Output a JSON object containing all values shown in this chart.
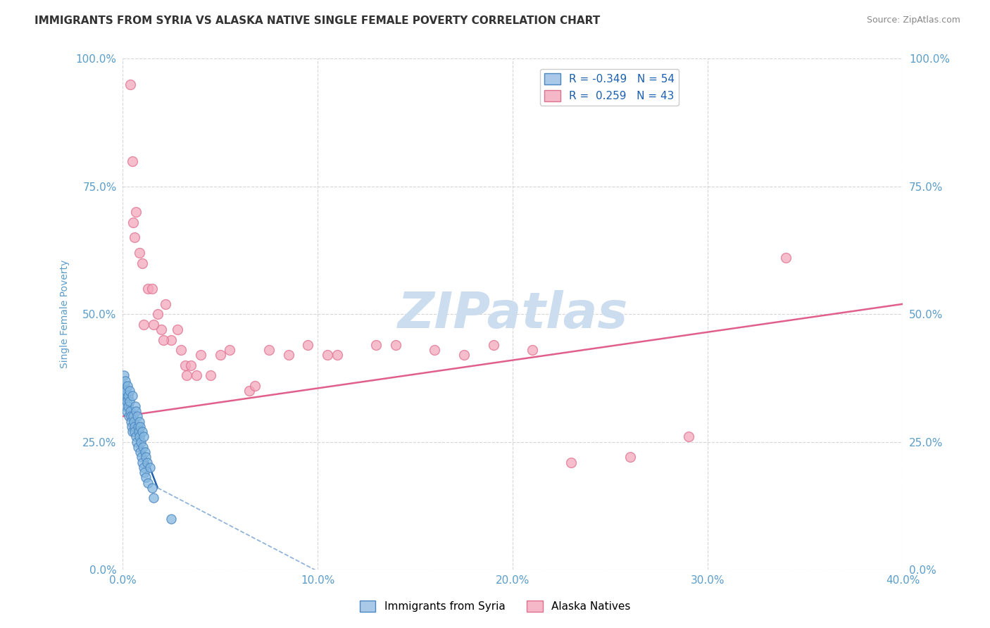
{
  "title": "IMMIGRANTS FROM SYRIA VS ALASKA NATIVE SINGLE FEMALE POVERTY CORRELATION CHART",
  "source": "Source: ZipAtlas.com",
  "ylabel": "Single Female Poverty",
  "x_tick_labels": [
    "0.0%",
    "10.0%",
    "20.0%",
    "30.0%",
    "40.0%"
  ],
  "x_tick_values": [
    0.0,
    10.0,
    20.0,
    30.0,
    40.0
  ],
  "y_tick_labels": [
    "0.0%",
    "25.0%",
    "50.0%",
    "75.0%",
    "100.0%"
  ],
  "y_tick_values": [
    0.0,
    25.0,
    50.0,
    75.0,
    100.0
  ],
  "xlim": [
    0.0,
    40.0
  ],
  "ylim": [
    0.0,
    100.0
  ],
  "watermark": "ZIPatlas",
  "blue_scatter": {
    "color": "#85b8e0",
    "edgecolor": "#4a86c0",
    "x": [
      0.05,
      0.08,
      0.1,
      0.12,
      0.14,
      0.15,
      0.18,
      0.2,
      0.22,
      0.25,
      0.28,
      0.3,
      0.32,
      0.35,
      0.38,
      0.4,
      0.42,
      0.45,
      0.48,
      0.5,
      0.52,
      0.55,
      0.58,
      0.6,
      0.62,
      0.65,
      0.68,
      0.7,
      0.72,
      0.75,
      0.78,
      0.8,
      0.82,
      0.85,
      0.88,
      0.9,
      0.92,
      0.95,
      0.98,
      1.0,
      1.02,
      1.05,
      1.08,
      1.1,
      1.12,
      1.15,
      1.18,
      1.2,
      1.25,
      1.3,
      1.4,
      1.5,
      1.6,
      2.5
    ],
    "y": [
      35,
      38,
      36,
      34,
      32,
      37,
      35,
      33,
      31,
      36,
      34,
      32,
      30,
      35,
      33,
      31,
      30,
      29,
      28,
      34,
      27,
      30,
      29,
      28,
      27,
      32,
      26,
      31,
      25,
      30,
      28,
      24,
      27,
      29,
      26,
      28,
      23,
      25,
      22,
      27,
      21,
      24,
      20,
      26,
      19,
      23,
      18,
      22,
      21,
      17,
      20,
      16,
      14,
      10
    ]
  },
  "pink_scatter": {
    "color": "#f4a8bc",
    "edgecolor": "#e07090",
    "x": [
      0.4,
      0.55,
      0.6,
      0.7,
      0.85,
      1.0,
      1.3,
      1.5,
      1.8,
      2.0,
      2.2,
      2.5,
      2.8,
      3.0,
      3.2,
      3.5,
      3.8,
      4.0,
      4.5,
      5.5,
      6.5,
      7.5,
      8.5,
      9.5,
      11.0,
      13.0,
      16.0,
      19.0,
      21.0,
      26.0,
      34.0,
      1.1,
      1.6,
      2.1,
      3.3,
      5.0,
      6.8,
      10.5,
      14.0,
      17.5,
      23.0,
      29.0,
      0.5
    ],
    "y": [
      95,
      68,
      65,
      70,
      62,
      60,
      55,
      55,
      50,
      47,
      52,
      45,
      47,
      43,
      40,
      40,
      38,
      42,
      38,
      43,
      35,
      43,
      42,
      44,
      42,
      44,
      43,
      44,
      43,
      22,
      61,
      48,
      48,
      45,
      38,
      42,
      36,
      42,
      44,
      42,
      21,
      26,
      80
    ]
  },
  "trendline_blue_solid": {
    "x": [
      0.0,
      1.8
    ],
    "y": [
      34.0,
      16.0
    ],
    "color": "#2060b0",
    "linestyle": "-",
    "linewidth": 1.8
  },
  "trendline_blue_dashed": {
    "x": [
      1.8,
      40.0
    ],
    "y": [
      16.0,
      -60.0
    ],
    "color": "#8ab0d8",
    "linestyle": "--",
    "linewidth": 1.2
  },
  "trendline_pink": {
    "x": [
      0.0,
      40.0
    ],
    "y": [
      30.0,
      52.0
    ],
    "color": "#e0608a",
    "linestyle": "-",
    "linewidth": 1.8
  },
  "legend_entries": [
    {
      "label": "R = -0.349   N = 54",
      "facecolor": "#aac8e8",
      "edgecolor": "#4a86c0"
    },
    {
      "label": "R =  0.259   N = 43",
      "facecolor": "#f4b8c8",
      "edgecolor": "#e07090"
    }
  ],
  "bottom_legend": [
    {
      "label": "Immigrants from Syria",
      "facecolor": "#aac8e8",
      "edgecolor": "#4a86c0"
    },
    {
      "label": "Alaska Natives",
      "facecolor": "#f4b8c8",
      "edgecolor": "#e07090"
    }
  ],
  "background_color": "#ffffff",
  "grid_color": "#cccccc",
  "title_color": "#333333",
  "title_fontsize": 11,
  "axis_color": "#5b9dc9",
  "source_color": "#888888",
  "watermark_color": "#ccddf0",
  "watermark_fontsize": 52
}
